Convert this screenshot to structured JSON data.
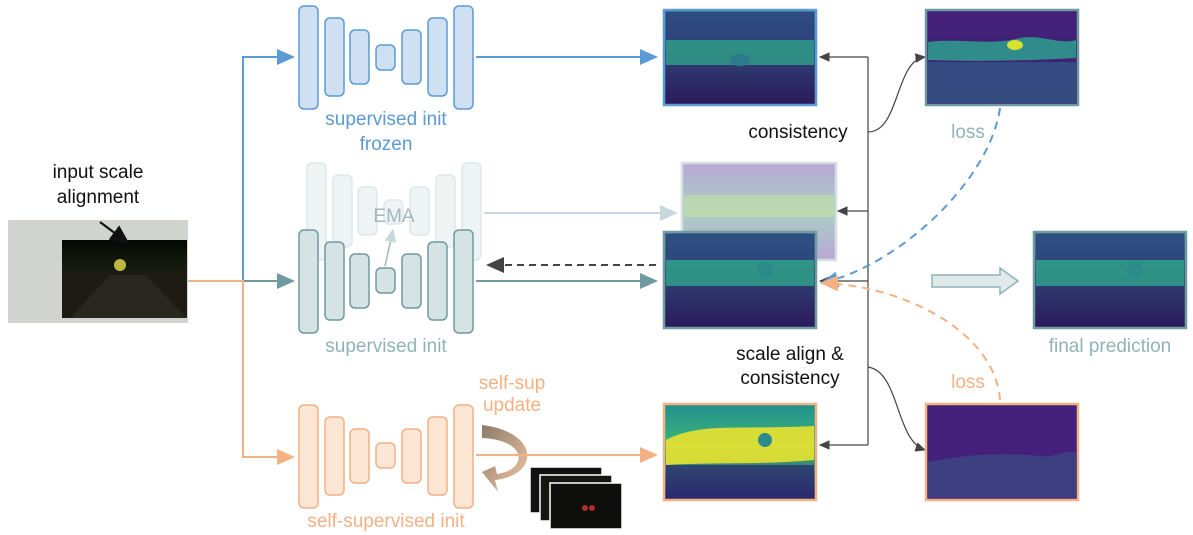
{
  "input": {
    "label_line1": "input scale",
    "label_line2": "alignment"
  },
  "networks": {
    "frozen": {
      "label_line1": "supervised init",
      "label_line2": "frozen",
      "color": "#5b9bd5"
    },
    "ema": {
      "label": "EMA",
      "color": "#9fb8bd"
    },
    "supervised": {
      "label": "supervised init",
      "color": "#8fb3b8"
    },
    "self_supervised": {
      "label": "self-supervised init",
      "update_line1": "self-sup",
      "update_line2": "update",
      "color": "#f4b183"
    }
  },
  "annotations": {
    "consistency": "consistency",
    "scale_align_line1": "scale align &",
    "scale_align_line2": "consistency",
    "loss_top": "loss",
    "loss_bottom": "loss",
    "final_prediction": "final prediction"
  },
  "colors": {
    "blue": "#5b9bd5",
    "blue_fill": "#cfe0f3",
    "teal": "#6f9aa0",
    "teal_fill": "#d5e3e4",
    "orange": "#f4b183",
    "orange_fill": "#fde6d3",
    "ema_fill": "#e9eff0"
  }
}
